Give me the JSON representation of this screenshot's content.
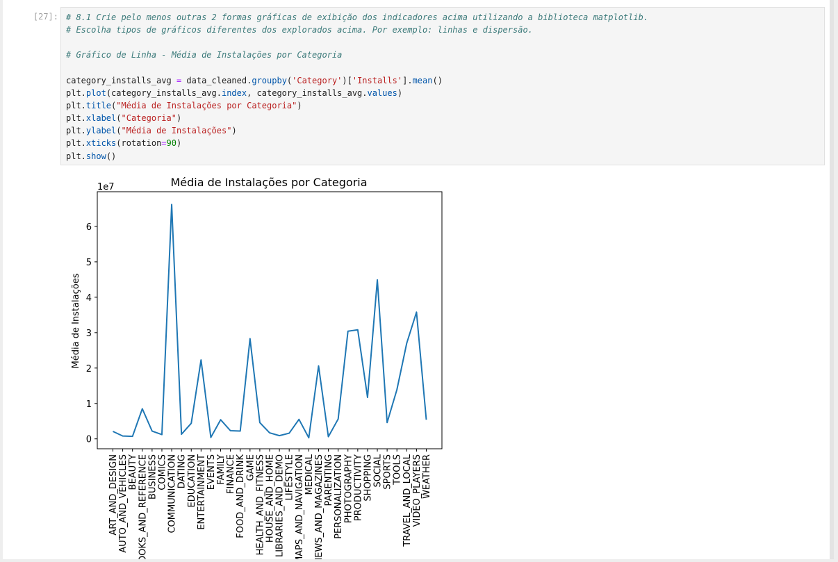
{
  "cell": {
    "prompt": "[27]:",
    "lines": [
      [
        {
          "t": "# 8.1 Crie pelo menos outras 2 formas gráficas de exibição dos indicadores acima utilizando a biblioteca matplotlib.",
          "c": "comment"
        }
      ],
      [
        {
          "t": "# Escolha tipos de gráficos diferentes dos explorados acima. Por exemplo: linhas e dispersão.",
          "c": "comment"
        }
      ],
      [],
      [
        {
          "t": "# Gráfico de Linha - Média de Instalações por Categoria",
          "c": "comment"
        }
      ],
      [],
      [
        {
          "t": "category_installs_avg ",
          "c": "var"
        },
        {
          "t": "=",
          "c": "op"
        },
        {
          "t": " data_cleaned.",
          "c": "var"
        },
        {
          "t": "groupby",
          "c": "attr"
        },
        {
          "t": "(",
          "c": "var"
        },
        {
          "t": "'Category'",
          "c": "str"
        },
        {
          "t": ")[",
          "c": "var"
        },
        {
          "t": "'Installs'",
          "c": "str"
        },
        {
          "t": "].",
          "c": "var"
        },
        {
          "t": "mean",
          "c": "attr"
        },
        {
          "t": "()",
          "c": "var"
        }
      ],
      [
        {
          "t": "plt.",
          "c": "var"
        },
        {
          "t": "plot",
          "c": "attr"
        },
        {
          "t": "(category_installs_avg.",
          "c": "var"
        },
        {
          "t": "index",
          "c": "attr"
        },
        {
          "t": ", category_installs_avg.",
          "c": "var"
        },
        {
          "t": "values",
          "c": "attr"
        },
        {
          "t": ")",
          "c": "var"
        }
      ],
      [
        {
          "t": "plt.",
          "c": "var"
        },
        {
          "t": "title",
          "c": "attr"
        },
        {
          "t": "(",
          "c": "var"
        },
        {
          "t": "\"Média de Instalações por Categoria\"",
          "c": "str"
        },
        {
          "t": ")",
          "c": "var"
        }
      ],
      [
        {
          "t": "plt.",
          "c": "var"
        },
        {
          "t": "xlabel",
          "c": "attr"
        },
        {
          "t": "(",
          "c": "var"
        },
        {
          "t": "\"Categoria\"",
          "c": "str"
        },
        {
          "t": ")",
          "c": "var"
        }
      ],
      [
        {
          "t": "plt.",
          "c": "var"
        },
        {
          "t": "ylabel",
          "c": "attr"
        },
        {
          "t": "(",
          "c": "var"
        },
        {
          "t": "\"Média de Instalações\"",
          "c": "str"
        },
        {
          "t": ")",
          "c": "var"
        }
      ],
      [
        {
          "t": "plt.",
          "c": "var"
        },
        {
          "t": "xticks",
          "c": "attr"
        },
        {
          "t": "(rotation",
          "c": "var"
        },
        {
          "t": "=",
          "c": "op"
        },
        {
          "t": "90",
          "c": "num"
        },
        {
          "t": ")",
          "c": "var"
        }
      ],
      [
        {
          "t": "plt.",
          "c": "var"
        },
        {
          "t": "show",
          "c": "attr"
        },
        {
          "t": "()",
          "c": "var"
        }
      ]
    ]
  },
  "chart_data": {
    "type": "line",
    "title": "Média de Instalações por Categoria",
    "xlabel": "",
    "ylabel": "Média de Instalações",
    "offset_label": "1e7",
    "ylim": [
      -0.28,
      6.98
    ],
    "yticks": [
      0,
      1,
      2,
      3,
      4,
      5,
      6
    ],
    "line_color": "#1f77b4",
    "categories": [
      "ART_AND_DESIGN",
      "AUTO_AND_VEHICLES",
      "BEAUTY",
      "BOOKS_AND_REFERENCE",
      "BUSINESS",
      "COMICS",
      "COMMUNICATION",
      "DATING",
      "EDUCATION",
      "ENTERTAINMENT",
      "EVENTS",
      "FAMILY",
      "FINANCE",
      "FOOD_AND_DRINK",
      "GAME",
      "HEALTH_AND_FITNESS",
      "HOUSE_AND_HOME",
      "LIBRARIES_AND_DEMO",
      "LIFESTYLE",
      "MAPS_AND_NAVIGATION",
      "MEDICAL",
      "NEWS_AND_MAGAZINES",
      "PARENTING",
      "PERSONALIZATION",
      "PHOTOGRAPHY",
      "PRODUCTIVITY",
      "SHOPPING",
      "SOCIAL",
      "SPORTS",
      "TOOLS",
      "TRAVEL_AND_LOCAL",
      "VIDEO_PLAYERS",
      "WEATHER"
    ],
    "values": [
      0.21,
      0.08,
      0.07,
      0.85,
      0.22,
      0.12,
      6.62,
      0.13,
      0.44,
      2.23,
      0.04,
      0.54,
      0.23,
      0.22,
      2.83,
      0.46,
      0.17,
      0.09,
      0.16,
      0.55,
      0.03,
      2.06,
      0.06,
      0.56,
      3.04,
      3.08,
      1.17,
      4.49,
      0.46,
      1.39,
      2.7,
      3.58,
      0.54
    ]
  }
}
